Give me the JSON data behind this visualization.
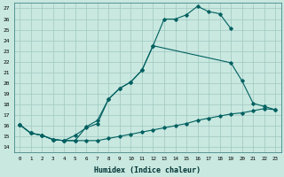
{
  "xlabel": "Humidex (Indice chaleur)",
  "xlim": [
    -0.5,
    23.5
  ],
  "ylim": [
    13.5,
    27.5
  ],
  "xticks": [
    0,
    1,
    2,
    3,
    4,
    5,
    6,
    7,
    8,
    9,
    10,
    11,
    12,
    13,
    14,
    15,
    16,
    17,
    18,
    19,
    20,
    21,
    22,
    23
  ],
  "yticks": [
    14,
    15,
    16,
    17,
    18,
    19,
    20,
    21,
    22,
    23,
    24,
    25,
    26,
    27
  ],
  "bg_color": "#c8e8e0",
  "grid_color": "#a0c8c0",
  "line_color": "#006060",
  "line1_x": [
    0,
    1,
    2,
    3,
    4,
    5,
    6,
    7,
    8,
    9,
    10,
    11,
    12,
    13,
    14,
    15,
    16,
    17,
    18,
    19
  ],
  "line1_y": [
    16.1,
    15.3,
    15.1,
    14.7,
    14.6,
    15.1,
    15.8,
    16.2,
    18.5,
    19.5,
    20.1,
    21.2,
    23.5,
    26.0,
    26.0,
    26.4,
    27.2,
    26.7,
    26.5,
    25.1
  ],
  "line2_x": [
    0,
    1,
    2,
    3,
    4,
    5,
    6,
    7,
    8,
    9,
    10,
    11,
    12,
    19,
    20,
    21,
    22,
    23
  ],
  "line2_y": [
    16.1,
    15.3,
    15.1,
    14.7,
    14.6,
    14.6,
    15.9,
    16.5,
    18.5,
    19.5,
    20.1,
    21.2,
    23.5,
    21.9,
    20.2,
    18.1,
    17.8,
    17.5
  ],
  "line3_x": [
    0,
    1,
    2,
    3,
    4,
    5,
    6,
    7,
    8,
    9,
    10,
    11,
    12,
    13,
    14,
    15,
    16,
    17,
    18,
    19,
    20,
    21,
    22,
    23
  ],
  "line3_y": [
    16.1,
    15.3,
    15.1,
    14.7,
    14.6,
    14.6,
    14.6,
    14.6,
    14.8,
    15.0,
    15.2,
    15.4,
    15.6,
    15.8,
    16.0,
    16.2,
    16.5,
    16.7,
    16.9,
    17.1,
    17.2,
    17.4,
    17.6,
    17.5
  ]
}
